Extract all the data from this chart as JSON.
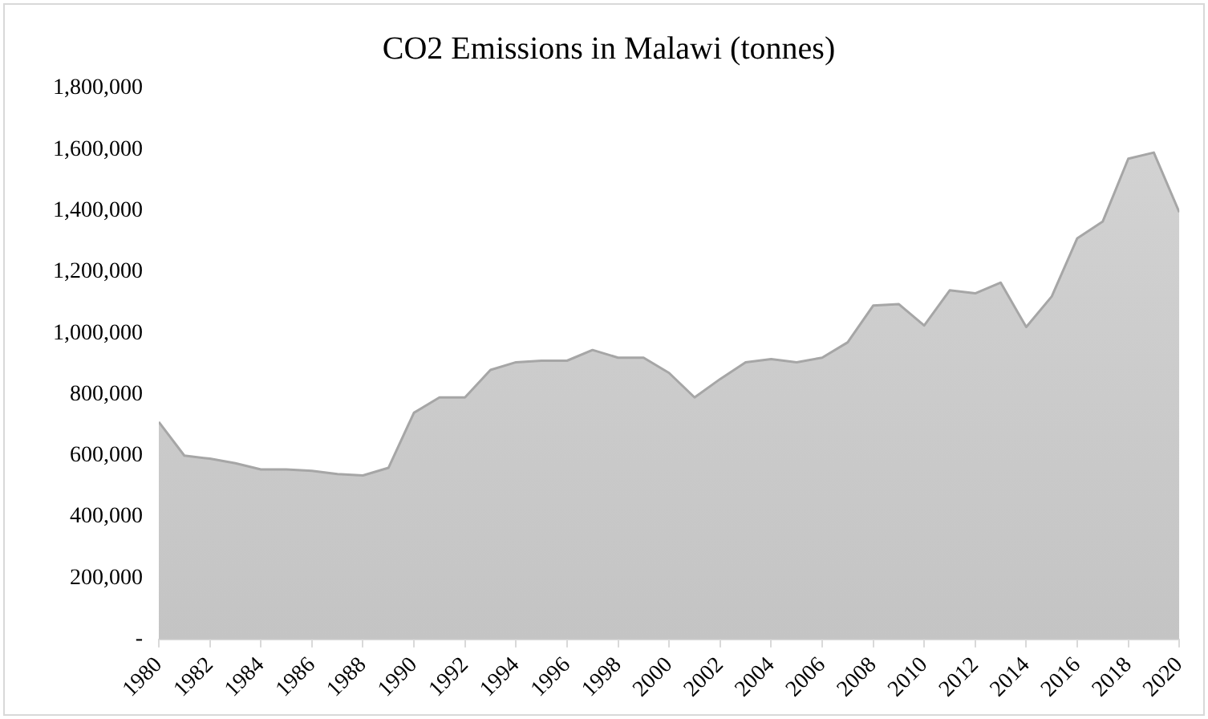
{
  "chart_data": {
    "type": "area",
    "title": "CO2 Emissions in Malawi (tonnes)",
    "x": [
      1980,
      1981,
      1982,
      1983,
      1984,
      1985,
      1986,
      1987,
      1988,
      1989,
      1990,
      1991,
      1992,
      1993,
      1994,
      1995,
      1996,
      1997,
      1998,
      1999,
      2000,
      2001,
      2002,
      2003,
      2004,
      2005,
      2006,
      2007,
      2008,
      2009,
      2010,
      2011,
      2012,
      2013,
      2014,
      2015,
      2016,
      2017,
      2018,
      2019,
      2020
    ],
    "series": [
      {
        "color": "#c4c4c4",
        "values": [
          710000,
          600000,
          590000,
          575000,
          555000,
          555000,
          550000,
          540000,
          535000,
          560000,
          740000,
          790000,
          790000,
          880000,
          905000,
          910000,
          910000,
          945000,
          920000,
          920000,
          870000,
          790000,
          850000,
          905000,
          915000,
          905000,
          920000,
          970000,
          1090000,
          1095000,
          1025000,
          1140000,
          1130000,
          1165000,
          1020000,
          1120000,
          1310000,
          1365000,
          1570000,
          1590000,
          1395000
        ]
      }
    ],
    "xlim": [
      1980,
      2020
    ],
    "xticks": [
      1980,
      1982,
      1984,
      1986,
      1988,
      1990,
      1992,
      1994,
      1996,
      1998,
      2000,
      2002,
      2004,
      2006,
      2008,
      2010,
      2012,
      2014,
      2016,
      2018,
      2020
    ],
    "ylim": [
      0,
      1800000
    ],
    "yticks": [
      {
        "value": 0,
        "label": "-"
      },
      {
        "value": 200000,
        "label": "200,000"
      },
      {
        "value": 400000,
        "label": "400,000"
      },
      {
        "value": 600000,
        "label": "600,000"
      },
      {
        "value": 800000,
        "label": "800,000"
      },
      {
        "value": 1000000,
        "label": "1,000,000"
      },
      {
        "value": 1200000,
        "label": "1,200,000"
      },
      {
        "value": 1400000,
        "label": "1,400,000"
      },
      {
        "value": 1600000,
        "label": "1,600,000"
      },
      {
        "value": 1800000,
        "label": "1,800,000"
      }
    ],
    "grid": false,
    "legend": false
  }
}
